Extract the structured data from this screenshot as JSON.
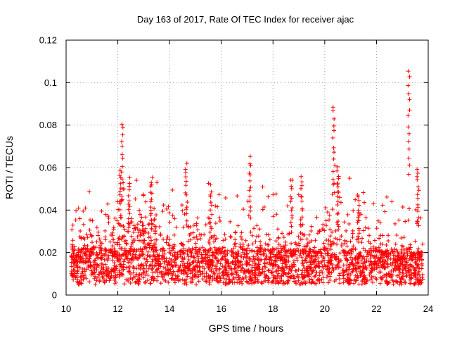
{
  "chart_data": {
    "type": "scatter",
    "title": "Day 163 of 2017, Rate Of TEC Index for receiver ajac",
    "xlabel": "GPS time / hours",
    "ylabel": "ROTI / TECUs",
    "xlim": [
      10,
      24
    ],
    "ylim": [
      0,
      0.12
    ],
    "xticks": [
      10,
      12,
      14,
      16,
      18,
      20,
      22,
      24
    ],
    "xtick_labels": [
      "10",
      "12",
      "14",
      "16",
      "18",
      "20",
      "22",
      "24"
    ],
    "yticks": [
      0,
      0.02,
      0.04,
      0.06,
      0.08,
      0.1,
      0.12
    ],
    "ytick_labels": [
      "0",
      "0.02",
      "0.04",
      "0.06",
      "0.08",
      "0.1",
      "0.12"
    ],
    "grid": true,
    "marker": "+",
    "series": [
      {
        "name": "ROTI",
        "color": "#ff0000",
        "time_range_hours": [
          10.2,
          23.8
        ],
        "baseline_band": [
          0.005,
          0.022
        ],
        "peaks": [
          {
            "x": 12.17,
            "y": 0.082
          },
          {
            "x": 12.1,
            "y": 0.06
          },
          {
            "x": 12.45,
            "y": 0.056
          },
          {
            "x": 13.3,
            "y": 0.056
          },
          {
            "x": 14.65,
            "y": 0.063
          },
          {
            "x": 15.6,
            "y": 0.052
          },
          {
            "x": 17.1,
            "y": 0.066
          },
          {
            "x": 18.7,
            "y": 0.056
          },
          {
            "x": 19.1,
            "y": 0.056
          },
          {
            "x": 20.35,
            "y": 0.09
          },
          {
            "x": 20.5,
            "y": 0.062
          },
          {
            "x": 21.3,
            "y": 0.048
          },
          {
            "x": 23.25,
            "y": 0.107
          },
          {
            "x": 23.6,
            "y": 0.061
          }
        ]
      }
    ]
  }
}
